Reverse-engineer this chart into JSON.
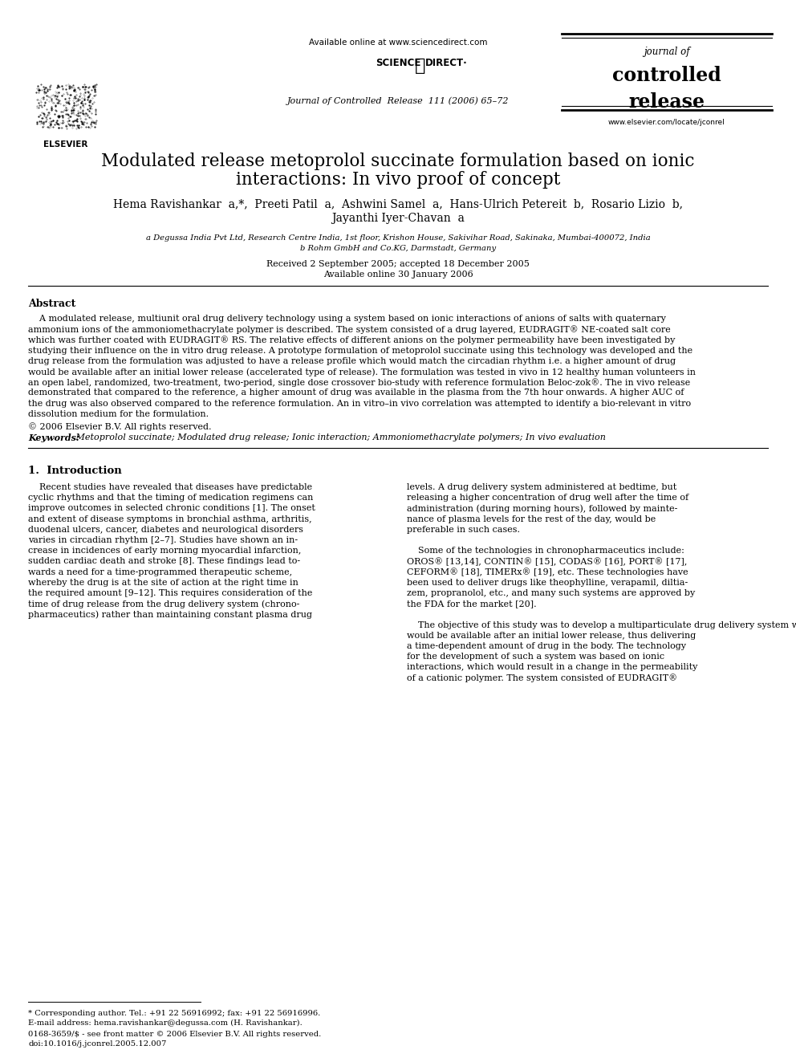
{
  "bg_color": "#ffffff",
  "header_available_online": "Available online at www.sciencedirect.com",
  "journal_name_line1": "journal of",
  "journal_name_line2": "controlled",
  "journal_name_line3": "release",
  "journal_website": "www.elsevier.com/locate/jconrel",
  "journal_ref": "Journal of Controlled  Release  111 (2006) 65–72",
  "title_line1": "Modulated release metoprolol succinate formulation based on ionic",
  "title_line2": "interactions: In vivo proof of concept",
  "authors_line1": "Hema Ravishankar  a,*,  Preeti Patil  a,  Ashwini Samel  a,  Hans-Ulrich Petereit  b,  Rosario Lizio  b,",
  "authors_line2": "Jayanthi Iyer-Chavan  a",
  "affil_a": "a Degussa India Pvt Ltd, Research Centre India, 1st floor, Krishon House, Sakivihar Road, Sakinaka, Mumbai-400072, India",
  "affil_b": "b Rohm GmbH and Co.KG, Darmstadt, Germany",
  "dates": "Received 2 September 2005; accepted 18 December 2005",
  "online": "Available online 30 January 2006",
  "abstract_title": "Abstract",
  "abstract_lines": [
    "    A modulated release, multiunit oral drug delivery technology using a system based on ionic interactions of anions of salts with quaternary",
    "ammonium ions of the ammoniomethacrylate polymer is described. The system consisted of a drug layered, EUDRAGIT® NE-coated salt core",
    "which was further coated with EUDRAGIT® RS. The relative effects of different anions on the polymer permeability have been investigated by",
    "studying their influence on the in vitro drug release. A prototype formulation of metoprolol succinate using this technology was developed and the",
    "drug release from the formulation was adjusted to have a release profile which would match the circadian rhythm i.e. a higher amount of drug",
    "would be available after an initial lower release (accelerated type of release). The formulation was tested in vivo in 12 healthy human volunteers in",
    "an open label, randomized, two-treatment, two-period, single dose crossover bio-study with reference formulation Beloc-zok®. The in vivo release",
    "demonstrated that compared to the reference, a higher amount of drug was available in the plasma from the 7th hour onwards. A higher AUC of",
    "the drug was also observed compared to the reference formulation. An in vitro–in vivo correlation was attempted to identify a bio-relevant in vitro",
    "dissolution medium for the formulation."
  ],
  "copyright": "© 2006 Elsevier B.V. All rights reserved.",
  "keywords_label": "Keywords:",
  "keywords_text": " Metoprolol succinate; Modulated drug release; Ionic interaction; Ammoniomethacrylate polymers; In vivo evaluation",
  "section1_title": "1.  Introduction",
  "col1_lines": [
    "    Recent studies have revealed that diseases have predictable",
    "cyclic rhythms and that the timing of medication regimens can",
    "improve outcomes in selected chronic conditions [1]. The onset",
    "and extent of disease symptoms in bronchial asthma, arthritis,",
    "duodenal ulcers, cancer, diabetes and neurological disorders",
    "varies in circadian rhythm [2–7]. Studies have shown an in-",
    "crease in incidences of early morning myocardial infarction,",
    "sudden cardiac death and stroke [8]. These findings lead to-",
    "wards a need for a time-programmed therapeutic scheme,",
    "whereby the drug is at the site of action at the right time in",
    "the required amount [9–12]. This requires consideration of the",
    "time of drug release from the drug delivery system (chrono-",
    "pharmaceutics) rather than maintaining constant plasma drug"
  ],
  "col2_lines": [
    "levels. A drug delivery system administered at bedtime, but",
    "releasing a higher concentration of drug well after the time of",
    "administration (during morning hours), followed by mainte-",
    "nance of plasma levels for the rest of the day, would be",
    "preferable in such cases.",
    "",
    "    Some of the technologies in chronopharmaceutics include:",
    "OROS® [13,14], CONTIN® [15], CODAS® [16], PORT® [17],",
    "CEFORM® [18], TIMERx® [19], etc. These technologies have",
    "been used to deliver drugs like theophylline, verapamil, diltia-",
    "zem, propranolol, etc., and many such systems are approved by",
    "the FDA for the market [20].",
    "",
    "    The objective of this study was to develop a multiparticulate drug delivery system wherein a higher amount of drug",
    "would be available after an initial lower release, thus delivering",
    "a time-dependent amount of drug in the body. The technology",
    "for the development of such a system was based on ionic",
    "interactions, which would result in a change in the permeability",
    "of a cationic polymer. The system consisted of EUDRAGIT®"
  ],
  "footnote_star": "* Corresponding author. Tel.: +91 22 56916992; fax: +91 22 56916996.",
  "footnote_email": "E-mail address: hema.ravishankar@degussa.com (H. Ravishankar).",
  "footnote_issn": "0168-3659/$ - see front matter © 2006 Elsevier B.V. All rights reserved.",
  "footnote_doi": "doi:10.1016/j.jconrel.2005.12.007"
}
